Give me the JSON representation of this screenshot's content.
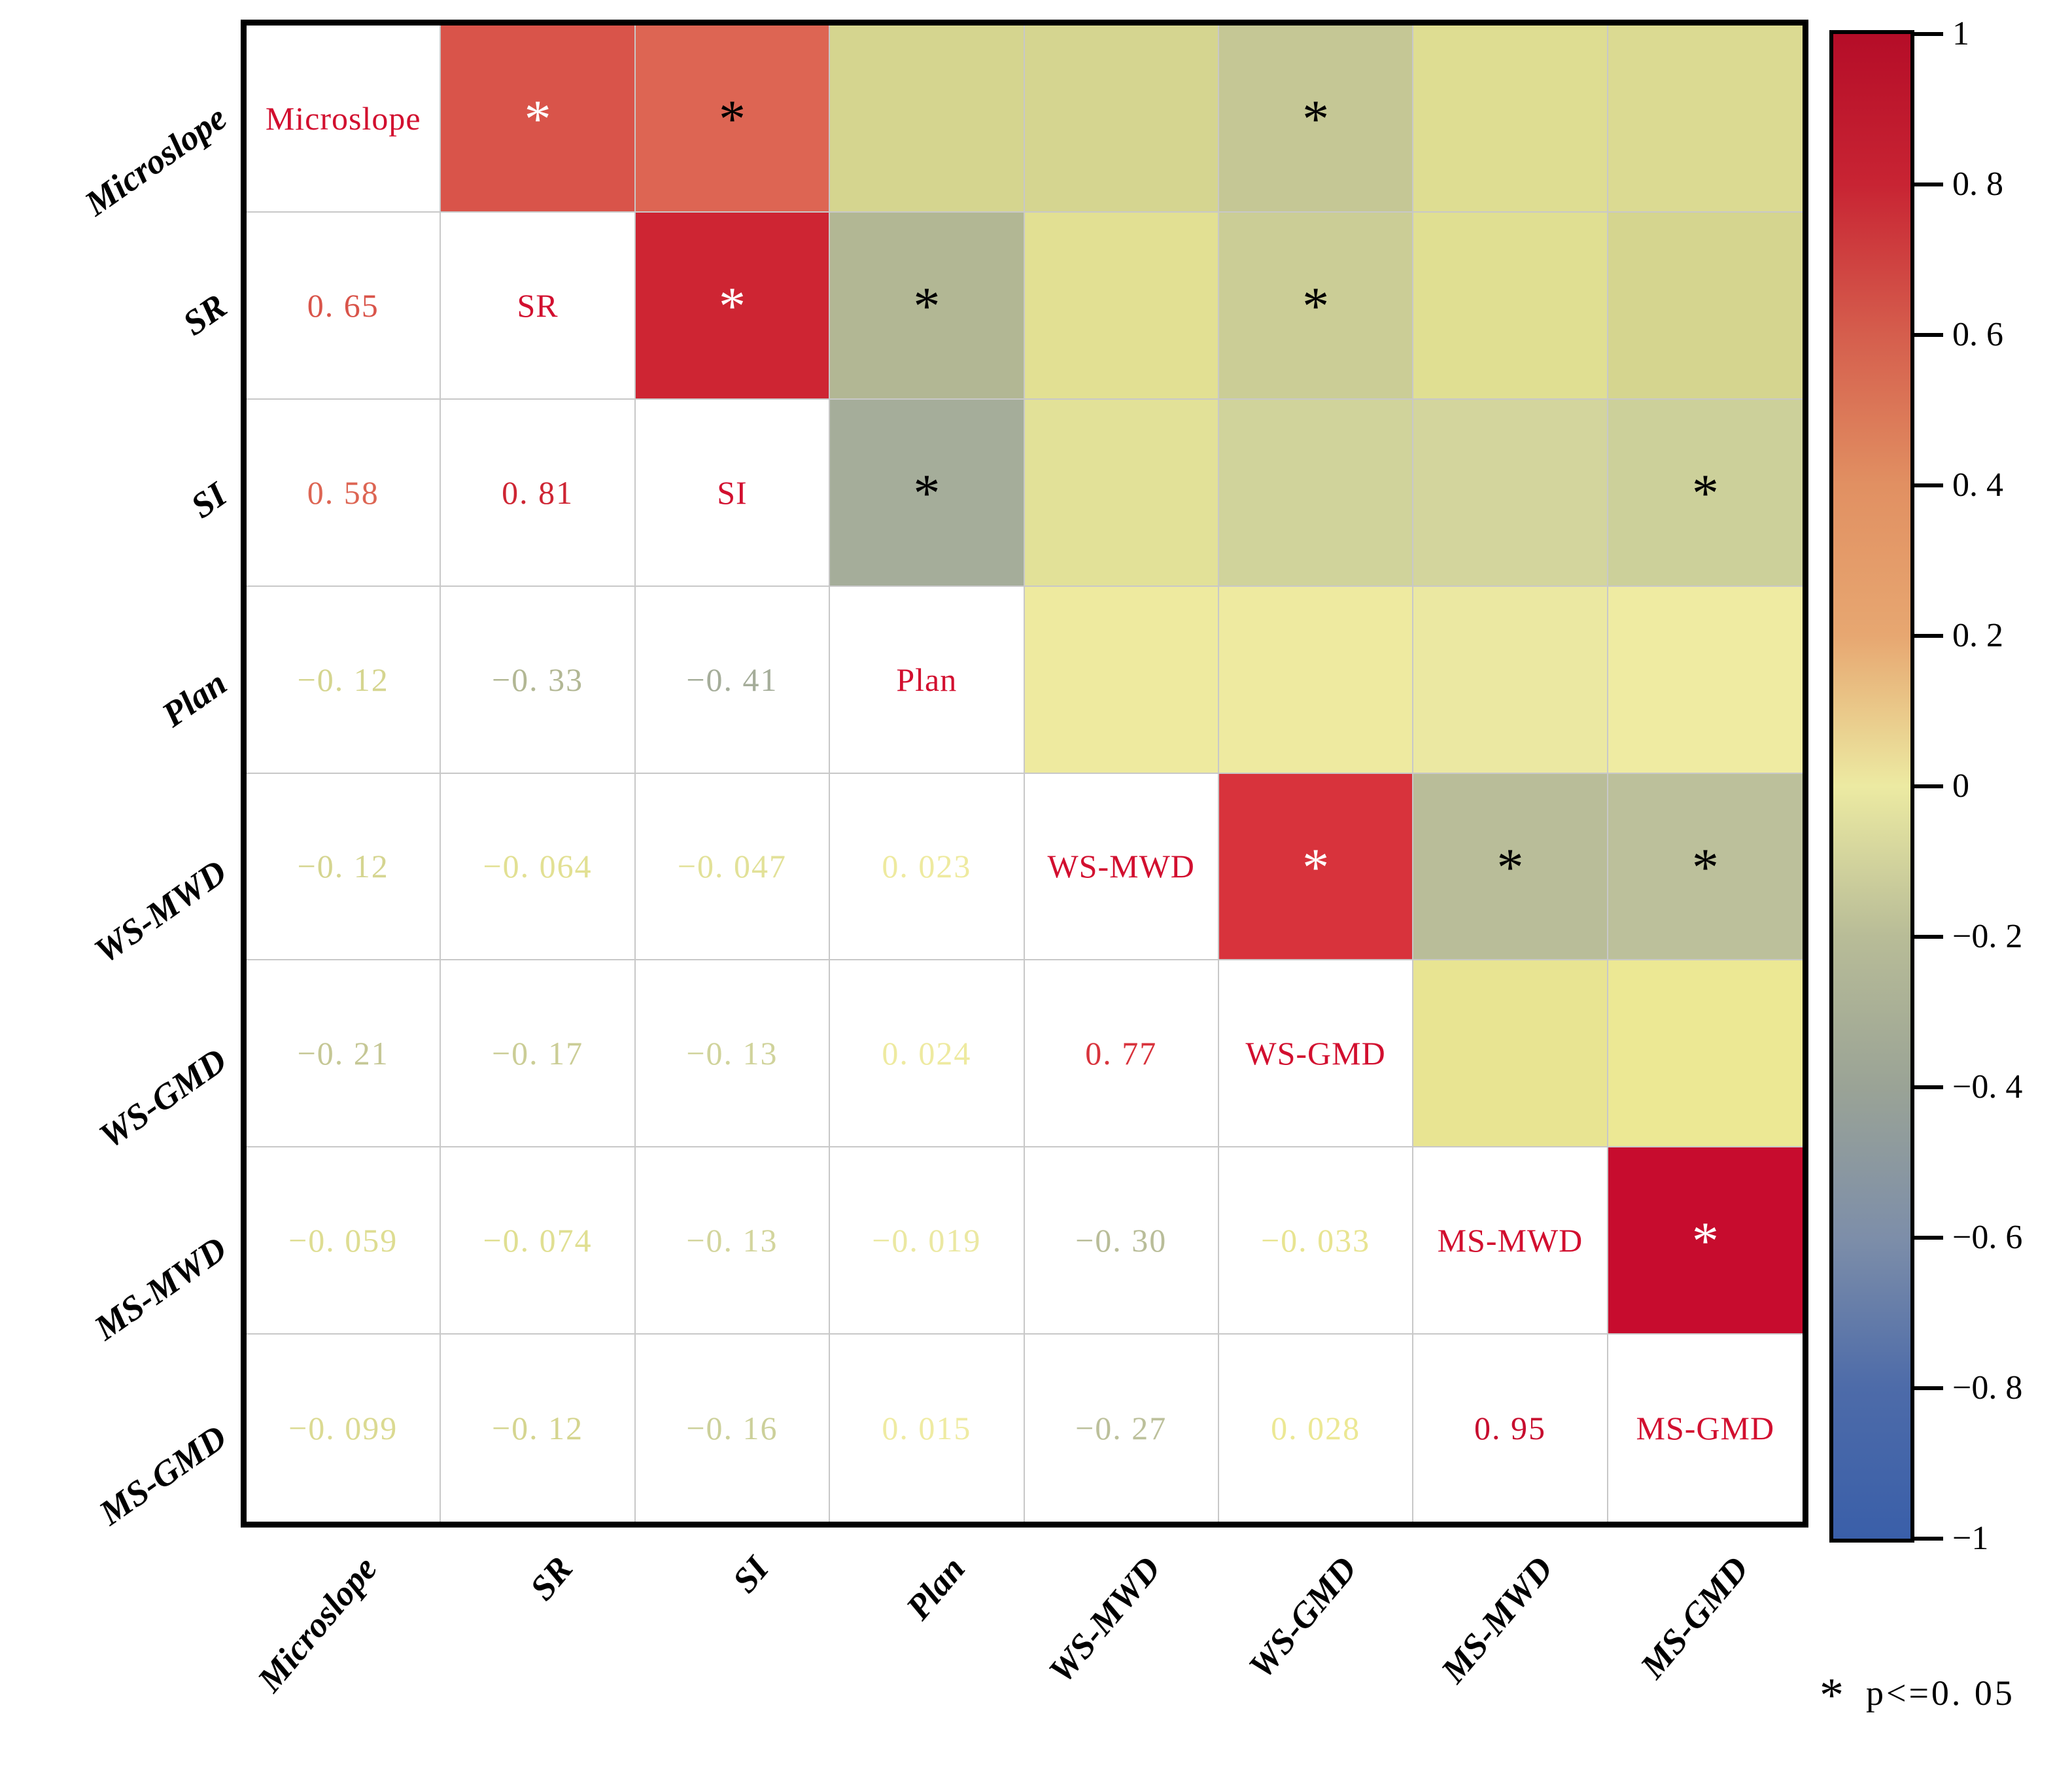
{
  "chart_data": {
    "type": "heatmap",
    "subtype": "correlation-matrix",
    "variables": [
      "Microslope",
      "SR",
      "SI",
      "Plan",
      "WS-MWD",
      "WS-GMD",
      "MS-MWD",
      "MS-GMD"
    ],
    "matrix": [
      [
        1,
        0.65,
        0.58,
        -0.12,
        -0.12,
        -0.21,
        -0.059,
        -0.099
      ],
      [
        0.65,
        1,
        0.81,
        -0.33,
        -0.064,
        -0.17,
        -0.074,
        -0.12
      ],
      [
        0.58,
        0.81,
        1,
        -0.41,
        -0.047,
        -0.13,
        -0.13,
        -0.16
      ],
      [
        -0.12,
        -0.33,
        -0.41,
        1,
        0.023,
        0.024,
        -0.019,
        0.015
      ],
      [
        -0.12,
        -0.064,
        -0.047,
        0.023,
        1,
        0.77,
        -0.3,
        -0.27
      ],
      [
        -0.21,
        -0.17,
        -0.13,
        0.024,
        0.77,
        1,
        -0.033,
        0.028
      ],
      [
        -0.059,
        -0.074,
        -0.13,
        -0.019,
        -0.3,
        -0.033,
        1,
        0.95
      ],
      [
        -0.099,
        -0.12,
        -0.16,
        0.015,
        -0.27,
        0.028,
        0.95,
        1
      ]
    ],
    "significant_pairs": [
      [
        "Microslope",
        "SR"
      ],
      [
        "Microslope",
        "SI"
      ],
      [
        "Microslope",
        "WS-GMD"
      ],
      [
        "SR",
        "SI"
      ],
      [
        "SR",
        "Plan"
      ],
      [
        "SR",
        "WS-GMD"
      ],
      [
        "SI",
        "Plan"
      ],
      [
        "SI",
        "MS-GMD"
      ],
      [
        "WS-MWD",
        "WS-GMD"
      ],
      [
        "WS-MWD",
        "MS-MWD"
      ],
      [
        "WS-MWD",
        "MS-GMD"
      ],
      [
        "MS-MWD",
        "MS-GMD"
      ]
    ],
    "colorbar_range": [
      -1,
      1
    ],
    "colorbar_ticks": [
      1,
      0.8,
      0.6,
      0.4,
      0.2,
      0,
      -0.2,
      -0.4,
      -0.6,
      -0.8,
      -1
    ],
    "legend": "* p<=0.05",
    "layout_hints": {
      "grid": "on",
      "upper_triangle": "colored cells with significance stars",
      "lower_triangle": "numeric values",
      "diagonal": "variable names",
      "colorbar_position": "right"
    }
  },
  "figure": {
    "colors": {
      "diag_label": "#d20f2f",
      "border": "#000000",
      "gridline": "#c8c8c8",
      "background": "#ffffff"
    },
    "legend": {
      "star": "*",
      "text": "p<=0. 05"
    }
  },
  "axes": {
    "left_labels": [
      "Microslope",
      "SR",
      "SI",
      "Plan",
      "WS-MWD",
      "WS-GMD",
      "MS-MWD",
      "MS-GMD"
    ],
    "bottom_labels": [
      "Microslope",
      "SR",
      "SI",
      "Plan",
      "WS-MWD",
      "WS-GMD",
      "MS-MWD",
      "MS-GMD"
    ]
  },
  "colorbar": {
    "tick_labels": [
      "1",
      "0. 8",
      "0. 6",
      "0. 4",
      "0. 2",
      "0",
      "−0. 2",
      "−0. 4",
      "−0. 6",
      "−0. 8",
      "−1"
    ],
    "gradient": [
      [
        "0%",
        "#b50d28"
      ],
      [
        "10%",
        "#c82433"
      ],
      [
        "20%",
        "#d55e4d"
      ],
      [
        "30%",
        "#e19062"
      ],
      [
        "40%",
        "#e7a771"
      ],
      [
        "50%",
        "#eceaa2"
      ],
      [
        "60%",
        "#b8bc97"
      ],
      [
        "70%",
        "#9aa396"
      ],
      [
        "80%",
        "#7d8ea9"
      ],
      [
        "90%",
        "#4d6ba9"
      ],
      [
        "100%",
        "#3a5fa9"
      ]
    ]
  },
  "grid": {
    "cells": [
      {
        "type": "diag",
        "text": "Microslope"
      },
      {
        "type": "upper",
        "bg": "#d9544a",
        "star": "#ffffff"
      },
      {
        "type": "upper",
        "bg": "#dd6553",
        "star": "#000000"
      },
      {
        "type": "upper",
        "bg": "#d5d58f"
      },
      {
        "type": "upper",
        "bg": "#d5d590"
      },
      {
        "type": "upper",
        "bg": "#c5c795",
        "star": "#000000"
      },
      {
        "type": "upper",
        "bg": "#dedd92"
      },
      {
        "type": "upper",
        "bg": "#dbda92"
      },
      {
        "type": "lower",
        "text": "0. 65",
        "color": "#d9544a"
      },
      {
        "type": "diag",
        "text": "SR"
      },
      {
        "type": "upper",
        "bg": "#ce2533",
        "star": "#ffffff"
      },
      {
        "type": "upper",
        "bg": "#b2b794",
        "star": "#000000"
      },
      {
        "type": "upper",
        "bg": "#e2e093"
      },
      {
        "type": "upper",
        "bg": "#cbcd96",
        "star": "#000000"
      },
      {
        "type": "upper",
        "bg": "#e0df92"
      },
      {
        "type": "upper",
        "bg": "#d5d58f"
      },
      {
        "type": "lower",
        "text": "0. 58",
        "color": "#dd6553"
      },
      {
        "type": "lower",
        "text": "0. 81",
        "color": "#ce2533"
      },
      {
        "type": "diag",
        "text": "SI"
      },
      {
        "type": "upper",
        "bg": "#a5ad9a",
        "star": "#000000"
      },
      {
        "type": "upper",
        "bg": "#e2e198"
      },
      {
        "type": "upper",
        "bg": "#d0d39b"
      },
      {
        "type": "upper",
        "bg": "#d3d59d"
      },
      {
        "type": "upper",
        "bg": "#ccd09a",
        "star": "#000000"
      },
      {
        "type": "lower",
        "text": "−0. 12",
        "color": "#d5d58f"
      },
      {
        "type": "lower",
        "text": "−0. 33",
        "color": "#b2b794"
      },
      {
        "type": "lower",
        "text": "−0. 41",
        "color": "#a5ad9a"
      },
      {
        "type": "diag",
        "text": "Plan"
      },
      {
        "type": "upper",
        "bg": "#eeea9f"
      },
      {
        "type": "upper",
        "bg": "#eeeaa0"
      },
      {
        "type": "upper",
        "bg": "#ebe8a2"
      },
      {
        "type": "upper",
        "bg": "#efeba2"
      },
      {
        "type": "lower",
        "text": "−0. 12",
        "color": "#d5d590"
      },
      {
        "type": "lower",
        "text": "−0. 064",
        "color": "#e2e093"
      },
      {
        "type": "lower",
        "text": "−0. 047",
        "color": "#e2e198"
      },
      {
        "type": "lower",
        "text": "0. 023",
        "color": "#eeea9f"
      },
      {
        "type": "diag",
        "text": "WS-MWD"
      },
      {
        "type": "upper",
        "bg": "#d8333c",
        "star": "#ffffff"
      },
      {
        "type": "upper",
        "bg": "#b9bd99",
        "star": "#000000"
      },
      {
        "type": "upper",
        "bg": "#bcc09b",
        "star": "#000000"
      },
      {
        "type": "lower",
        "text": "−0. 21",
        "color": "#c5c795"
      },
      {
        "type": "lower",
        "text": "−0. 17",
        "color": "#cbcd96"
      },
      {
        "type": "lower",
        "text": "−0. 13",
        "color": "#d0d39b"
      },
      {
        "type": "lower",
        "text": "0. 024",
        "color": "#eeeaa0"
      },
      {
        "type": "lower",
        "text": "0. 77",
        "color": "#d8333c"
      },
      {
        "type": "diag",
        "text": "WS-GMD"
      },
      {
        "type": "upper",
        "bg": "#e8e492"
      },
      {
        "type": "upper",
        "bg": "#ece894"
      },
      {
        "type": "lower",
        "text": "−0. 059",
        "color": "#dedd92"
      },
      {
        "type": "lower",
        "text": "−0. 074",
        "color": "#e0df92"
      },
      {
        "type": "lower",
        "text": "−0. 13",
        "color": "#d3d59d"
      },
      {
        "type": "lower",
        "text": "−0. 019",
        "color": "#ebe8a2"
      },
      {
        "type": "lower",
        "text": "−0. 30",
        "color": "#b9bd99"
      },
      {
        "type": "lower",
        "text": "−0. 033",
        "color": "#e8e492"
      },
      {
        "type": "diag",
        "text": "MS-MWD"
      },
      {
        "type": "upper",
        "bg": "#c70c2e",
        "star": "#ffffff"
      },
      {
        "type": "lower",
        "text": "−0. 099",
        "color": "#dbda92"
      },
      {
        "type": "lower",
        "text": "−0. 12",
        "color": "#d5d58f"
      },
      {
        "type": "lower",
        "text": "−0. 16",
        "color": "#ccd09a"
      },
      {
        "type": "lower",
        "text": "0. 015",
        "color": "#efeba2"
      },
      {
        "type": "lower",
        "text": "−0. 27",
        "color": "#bcc09b"
      },
      {
        "type": "lower",
        "text": "0. 028",
        "color": "#ece894"
      },
      {
        "type": "lower",
        "text": "0. 95",
        "color": "#c70c2e"
      },
      {
        "type": "diag",
        "text": "MS-GMD"
      }
    ]
  }
}
